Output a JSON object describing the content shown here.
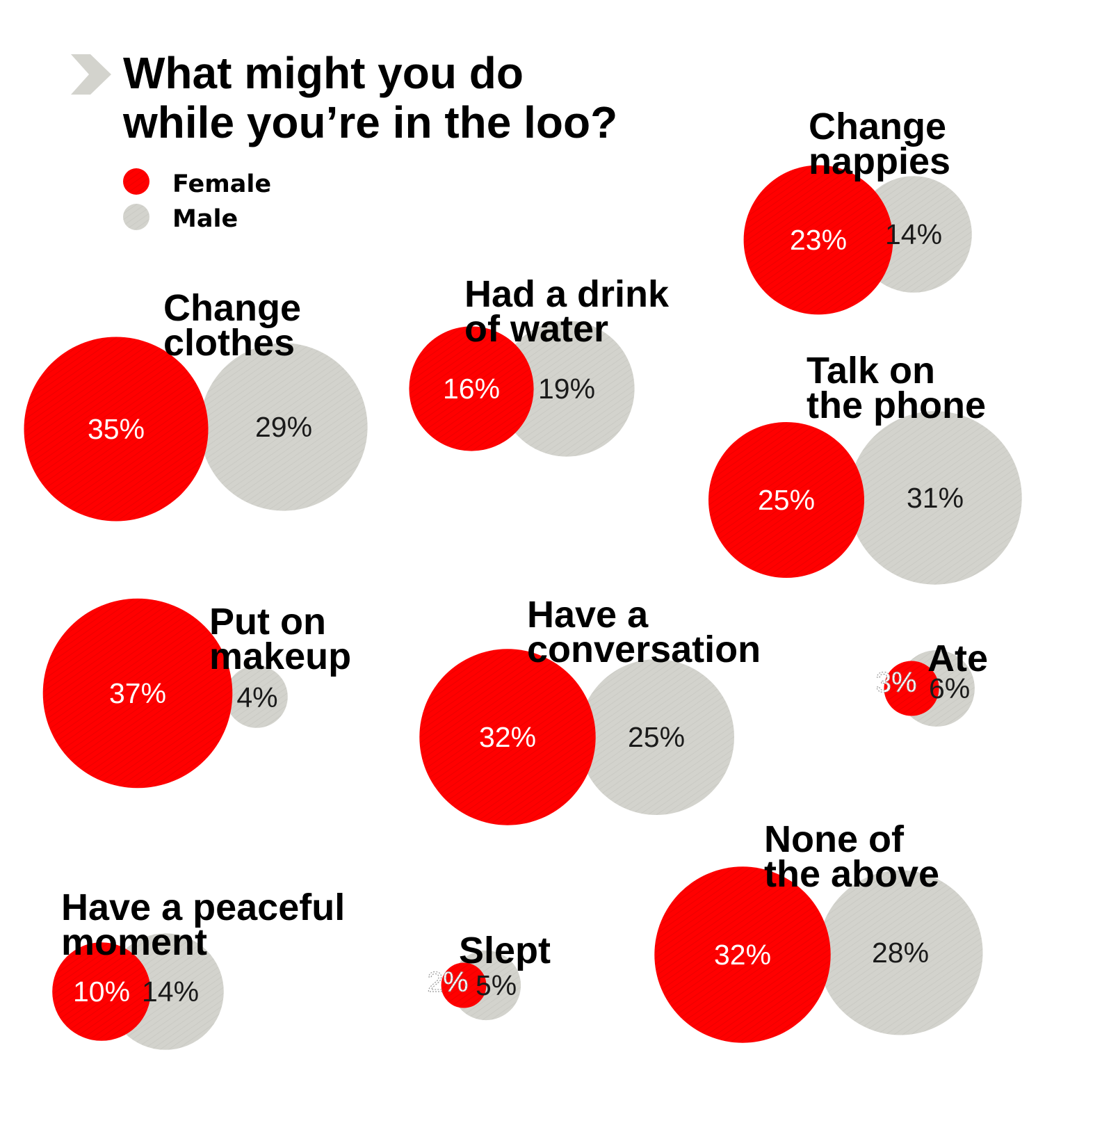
{
  "chart_data": {
    "type": "bubble",
    "title": "What might you do while you’re in the loo?",
    "title_lines": [
      "What might you do",
      "while you’re in the loo?"
    ],
    "legend": [
      {
        "name": "Female",
        "color": "#ff0000"
      },
      {
        "name": "Male",
        "color": "#d3d3cd"
      }
    ],
    "unit": "%",
    "categories": [
      {
        "label_lines": [
          "Change",
          "nappies"
        ],
        "female": 23,
        "male": 14
      },
      {
        "label_lines": [
          "Change",
          "clothes"
        ],
        "female": 35,
        "male": 29
      },
      {
        "label_lines": [
          "Had a drink",
          "of water"
        ],
        "female": 16,
        "male": 19
      },
      {
        "label_lines": [
          "Talk on",
          "the phone"
        ],
        "female": 25,
        "male": 31
      },
      {
        "label_lines": [
          "Put on",
          "makeup"
        ],
        "female": 37,
        "male": 4
      },
      {
        "label_lines": [
          "Have a",
          "conversation"
        ],
        "female": 32,
        "male": 25
      },
      {
        "label_lines": [
          "Ate"
        ],
        "female": 3,
        "male": 6
      },
      {
        "label_lines": [
          "None of",
          "the above"
        ],
        "female": 32,
        "male": 28
      },
      {
        "label_lines": [
          "Have a peaceful",
          "moment"
        ],
        "female": 10,
        "male": 14
      },
      {
        "label_lines": [
          "Slept"
        ],
        "female": 2,
        "male": 5
      }
    ]
  },
  "colors": {
    "female": "#ff0000",
    "male": "#d3d3cd",
    "chevron": "#d3d3cd"
  }
}
